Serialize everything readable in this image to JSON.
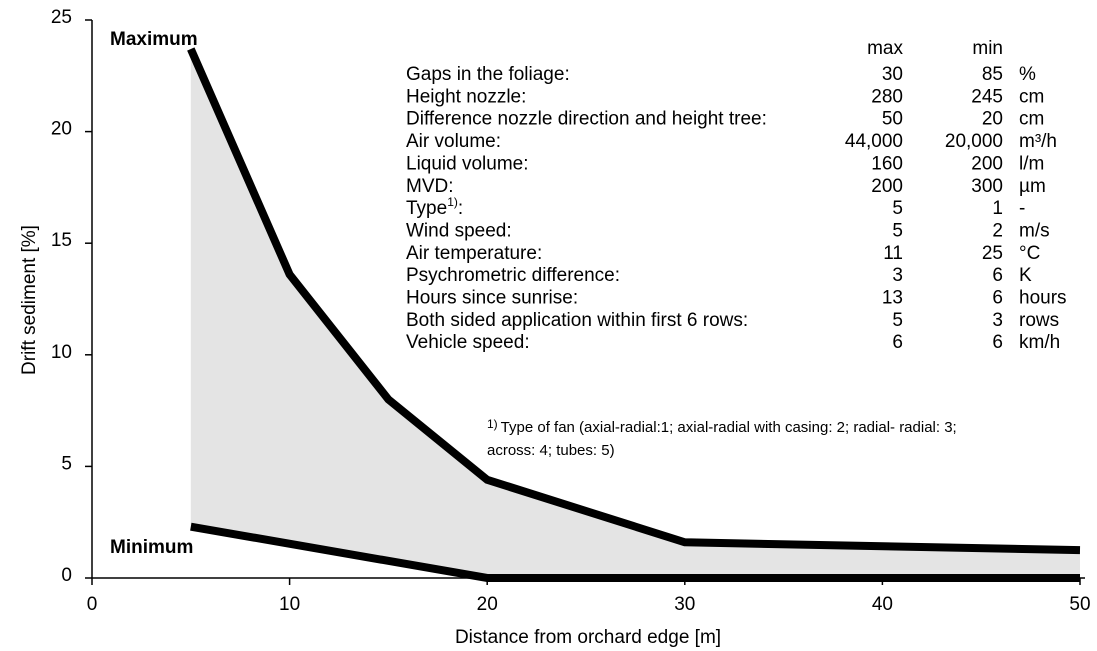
{
  "chart_data": {
    "type": "line",
    "x_label": "Distance from orchard edge [m]",
    "y_label": "Drift sediment [%]",
    "xlim": [
      0,
      50
    ],
    "xticks": [
      0,
      10,
      20,
      30,
      40,
      50
    ],
    "ylim": [
      0,
      25
    ],
    "yticks": [
      0,
      5,
      10,
      15,
      20,
      25
    ],
    "fill_color": "#e4e4e4",
    "series": [
      {
        "name": "Maximum",
        "color": "#000000",
        "x": [
          5,
          10,
          15,
          20,
          30,
          50
        ],
        "values": [
          23.7,
          13.6,
          8.0,
          4.4,
          1.6,
          1.25
        ]
      },
      {
        "name": "Minimum",
        "color": "#000000",
        "x": [
          5,
          20,
          30,
          50
        ],
        "values": [
          2.3,
          0,
          0,
          0
        ]
      }
    ],
    "table": {
      "header": [
        "max",
        "min"
      ],
      "rows": [
        [
          "Gaps in the foliage:",
          "30",
          "85",
          "%"
        ],
        [
          "Height nozzle:",
          "280",
          "245",
          "cm"
        ],
        [
          "Difference nozzle direction and height tree:",
          "50",
          "20",
          "cm"
        ],
        [
          "Air volume:",
          "44,000",
          "20,000",
          "m³/h"
        ],
        [
          "Liquid volume:",
          "160",
          "200",
          "l/m"
        ],
        [
          "MVD:",
          "200",
          "300",
          "µm"
        ],
        [
          "Type",
          "5",
          "1",
          "-"
        ],
        [
          "Wind speed:",
          "5",
          "2",
          "m/s"
        ],
        [
          "Air temperature:",
          "11",
          "25",
          "°C"
        ],
        [
          "Psychrometric difference:",
          "3",
          "6",
          "K"
        ],
        [
          "Hours since sunrise:",
          "13",
          "6",
          "hours"
        ],
        [
          "Both sided application within first 6 rows:",
          "5",
          "3",
          "rows"
        ],
        [
          "Vehicle speed:",
          "6",
          "6",
          "km/h"
        ]
      ],
      "type_sup": "1)",
      "type_colon": ":"
    },
    "footnote": {
      "sup": "1)",
      "lines": [
        "Type of fan (axial-radial:1; axial-radial with casing: 2; radial- radial: 3;",
        "across: 4; tubes: 5)"
      ]
    }
  }
}
